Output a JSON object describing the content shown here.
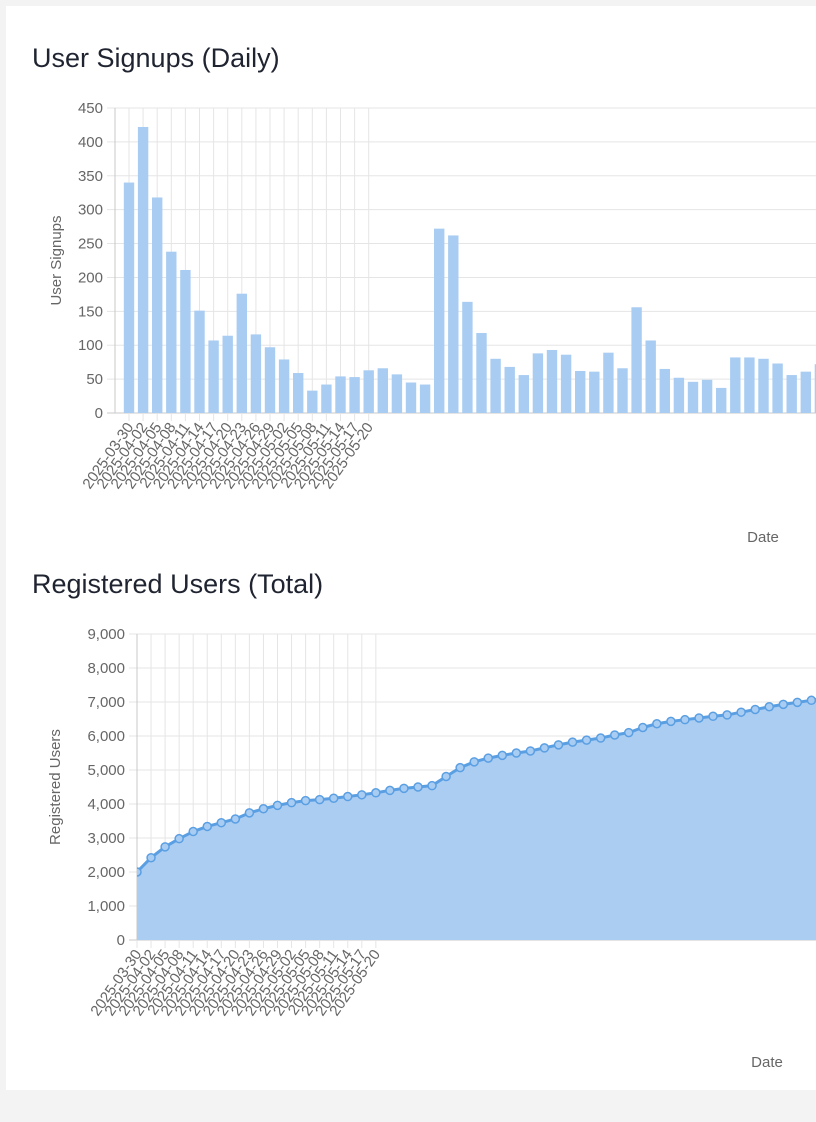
{
  "chart_data": [
    {
      "id": "signups",
      "type": "bar",
      "title": "User Signups (Daily)",
      "xlabel": "Date",
      "ylabel": "User Signups",
      "ylim": [
        0,
        450
      ],
      "y_ticks": [
        "0",
        "50",
        "100",
        "150",
        "200",
        "250",
        "300",
        "350",
        "400",
        "450"
      ],
      "x_tick_labels": [
        "2025-03-30",
        "2025-04-02",
        "2025-04-05",
        "2025-04-08",
        "2025-04-11",
        "2025-04-14",
        "2025-04-17",
        "2025-04-20",
        "2025-04-23",
        "2025-04-26",
        "2025-04-29",
        "2025-05-02",
        "2025-05-05",
        "2025-05-08",
        "2025-05-11",
        "2025-05-14",
        "2025-05-17",
        "2025-05-20"
      ],
      "series": [
        {
          "name": "User Signups",
          "color": "#a9cdf2",
          "values": [
            340,
            422,
            318,
            238,
            211,
            151,
            107,
            114,
            176,
            116,
            97,
            79,
            59,
            33,
            42,
            54,
            53,
            63,
            66,
            57,
            45,
            42,
            272,
            262,
            164,
            118,
            80,
            68,
            56,
            88,
            93,
            86,
            62,
            61,
            89,
            66,
            156,
            107,
            65,
            52,
            46,
            49,
            37,
            82,
            82,
            80,
            73,
            56,
            61,
            72
          ]
        }
      ]
    },
    {
      "id": "registered",
      "type": "area",
      "title": "Registered Users (Total)",
      "xlabel": "Date",
      "ylabel": "Registered Users",
      "ylim": [
        0,
        9000
      ],
      "y_ticks": [
        "0",
        "1,000",
        "2,000",
        "3,000",
        "4,000",
        "5,000",
        "6,000",
        "7,000",
        "8,000",
        "9,000"
      ],
      "x_tick_labels": [
        "2025-03-30",
        "2025-04-02",
        "2025-04-05",
        "2025-04-08",
        "2025-04-11",
        "2025-04-14",
        "2025-04-17",
        "2025-04-20",
        "2025-04-23",
        "2025-04-26",
        "2025-04-29",
        "2025-05-02",
        "2025-05-05",
        "2025-05-08",
        "2025-05-11",
        "2025-05-14",
        "2025-05-17",
        "2025-05-20"
      ],
      "series": [
        {
          "name": "Registered Users",
          "color": "#5b9fe3",
          "fill": "#abcdf2",
          "values": [
            2000,
            2420,
            2740,
            2980,
            3190,
            3340,
            3450,
            3560,
            3740,
            3860,
            3960,
            4040,
            4100,
            4130,
            4170,
            4220,
            4270,
            4330,
            4400,
            4460,
            4500,
            4540,
            4810,
            5070,
            5240,
            5350,
            5430,
            5500,
            5560,
            5650,
            5740,
            5820,
            5880,
            5940,
            6030,
            6100,
            6250,
            6360,
            6430,
            6480,
            6530,
            6580,
            6620,
            6700,
            6780,
            6860,
            6930,
            6990,
            7050,
            7120
          ]
        }
      ]
    }
  ]
}
